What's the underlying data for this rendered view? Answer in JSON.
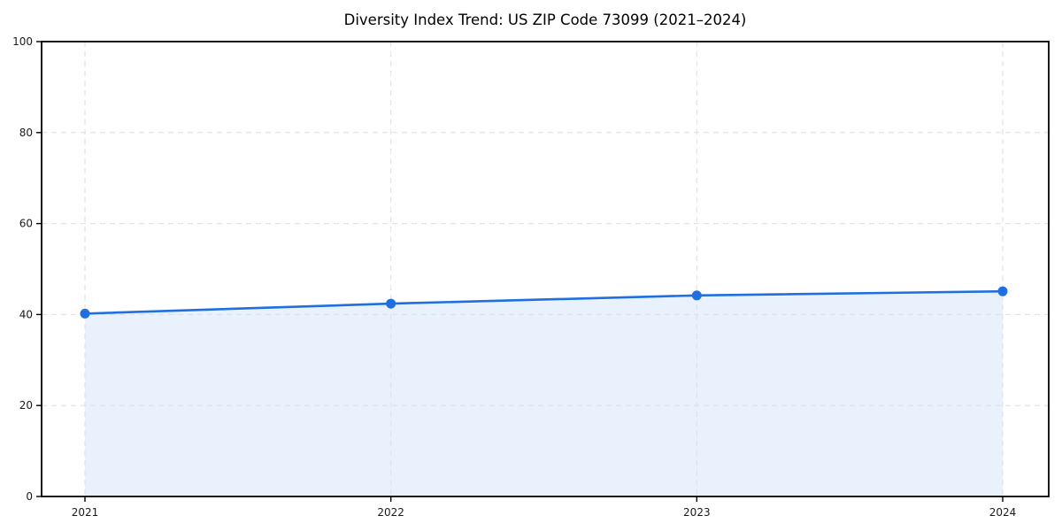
{
  "figure": {
    "title": "Diversity Index Trend: US ZIP Code 73099 (2021–2024)"
  },
  "chart_data": {
    "type": "area",
    "title": "Diversity Index Trend: US ZIP Code 73099 (2021–2024)",
    "x_categories": [
      "2021",
      "2022",
      "2023",
      "2024"
    ],
    "series": [
      {
        "name": "Diversity Index",
        "values": [
          40.2,
          42.4,
          44.2,
          45.1
        ]
      }
    ],
    "xlabel": "",
    "ylabel": "",
    "ylim": [
      0,
      100
    ],
    "yticks": [
      0,
      20,
      40,
      60,
      80,
      100
    ],
    "grid": true,
    "grid_style": "dashed",
    "legend": "none",
    "marker": "circle",
    "colors": {
      "line": "#1f6fe0",
      "marker": "#1f6fe0",
      "area_fill": "#e9f1fd",
      "grid": "#dedede",
      "axis": "#000000",
      "tick_label": "#1a1a1a",
      "background": "#ffffff"
    }
  }
}
